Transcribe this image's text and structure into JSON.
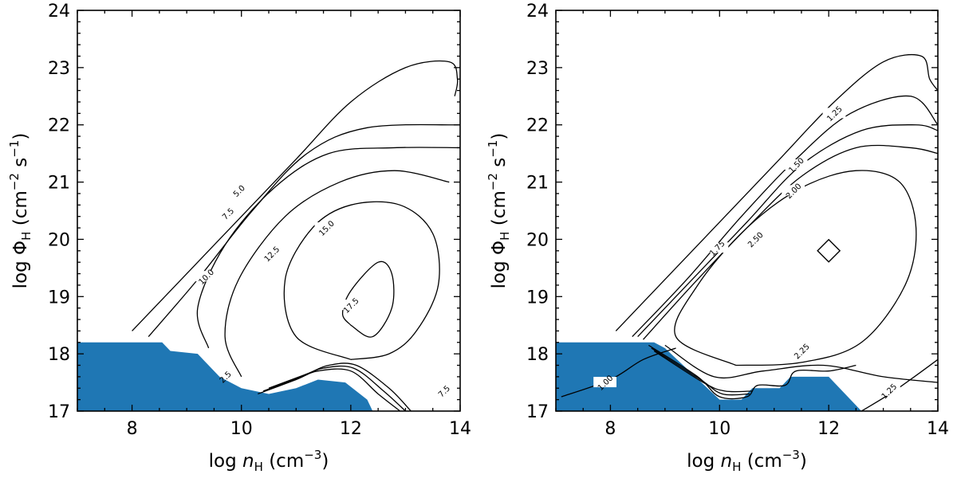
{
  "chart_data": [
    {
      "type": "contour",
      "x": {
        "label_main": "log",
        "label_var": "n",
        "label_sub": "H",
        "label_unit": "(cm",
        "label_exp": "−3",
        "label_close": ")",
        "range": [
          7,
          14
        ],
        "ticks": [
          "8",
          "10",
          "12",
          "14"
        ]
      },
      "y": {
        "label_main": "log",
        "label_var": "Φ",
        "label_sub": "H",
        "label_unit1": "(cm",
        "label_exp1": "−2",
        "label_unit2": "s",
        "label_exp2": "−1",
        "label_close": ")",
        "range": [
          17,
          24
        ],
        "ticks": [
          "17",
          "18",
          "19",
          "20",
          "21",
          "22",
          "23",
          "24"
        ]
      },
      "fill_region": {
        "color": "#1f77b4",
        "points": [
          [
            7,
            18.2
          ],
          [
            8.55,
            18.2
          ],
          [
            8.7,
            18.05
          ],
          [
            9.2,
            18.0
          ],
          [
            9.6,
            17.6
          ],
          [
            10.0,
            17.4
          ],
          [
            10.5,
            17.3
          ],
          [
            11.0,
            17.4
          ],
          [
            11.4,
            17.55
          ],
          [
            11.9,
            17.5
          ],
          [
            12.3,
            17.2
          ],
          [
            12.4,
            17.0
          ],
          [
            7,
            17.0
          ]
        ]
      },
      "contours": [
        {
          "level": "5.0",
          "label_at": [
            9.95,
            20.85
          ],
          "points": [
            [
              8.0,
              18.4
            ],
            [
              9.0,
              19.4
            ],
            [
              10.0,
              20.4
            ],
            [
              11.0,
              21.4
            ],
            [
              12.0,
              22.4
            ],
            [
              13.0,
              23.0
            ],
            [
              13.8,
              23.1
            ],
            [
              13.95,
              22.8
            ],
            [
              13.9,
              22.5
            ]
          ]
        },
        {
          "level": "7.5",
          "label_at": [
            9.75,
            20.45
          ],
          "points": [
            [
              8.3,
              18.3
            ],
            [
              9.2,
              19.3
            ],
            [
              10.2,
              20.5
            ],
            [
              11.2,
              21.5
            ],
            [
              12.3,
              21.95
            ],
            [
              14.0,
              22.0
            ]
          ]
        },
        {
          "level": "10.0",
          "label_at": [
            9.35,
            19.35
          ],
          "points": [
            [
              9.4,
              18.1
            ],
            [
              9.2,
              18.8
            ],
            [
              9.7,
              19.9
            ],
            [
              10.6,
              20.9
            ],
            [
              11.6,
              21.5
            ],
            [
              12.8,
              21.6
            ],
            [
              14.0,
              21.6
            ]
          ]
        },
        {
          "level": "12.5",
          "label_at": [
            10.55,
            19.75
          ],
          "points": [
            [
              10.0,
              17.6
            ],
            [
              9.7,
              18.3
            ],
            [
              9.95,
              19.3
            ],
            [
              10.8,
              20.4
            ],
            [
              11.8,
              21.0
            ],
            [
              12.8,
              21.2
            ],
            [
              13.8,
              21.0
            ]
          ]
        },
        {
          "level": "15.0",
          "label_at": [
            11.55,
            20.2
          ],
          "points": [
            [
              12.0,
              17.9
            ],
            [
              11.0,
              18.3
            ],
            [
              10.8,
              19.3
            ],
            [
              11.3,
              20.2
            ],
            [
              12.0,
              20.6
            ],
            [
              12.9,
              20.6
            ],
            [
              13.5,
              20.1
            ],
            [
              13.6,
              19.2
            ],
            [
              13.2,
              18.4
            ],
            [
              12.7,
              18.0
            ],
            [
              12.0,
              17.9
            ]
          ]
        },
        {
          "level": "17.5",
          "label_at": [
            12.0,
            18.85
          ],
          "points": [
            [
              12.0,
              18.5
            ],
            [
              12.4,
              18.3
            ],
            [
              12.75,
              18.8
            ],
            [
              12.75,
              19.4
            ],
            [
              12.5,
              19.6
            ],
            [
              12.0,
              19.1
            ],
            [
              11.85,
              18.7
            ],
            [
              12.0,
              18.5
            ]
          ]
        },
        {
          "level": "",
          "label_at": null,
          "points": [
            [
              10.3,
              17.3
            ],
            [
              11.0,
              17.55
            ],
            [
              11.4,
              17.7
            ],
            [
              12.0,
              17.7
            ],
            [
              12.5,
              17.3
            ],
            [
              12.9,
              17.0
            ]
          ]
        },
        {
          "level": "",
          "label_at": null,
          "points": [
            [
              10.4,
              17.35
            ],
            [
              11.1,
              17.6
            ],
            [
              11.5,
              17.75
            ],
            [
              12.05,
              17.75
            ],
            [
              12.6,
              17.35
            ],
            [
              13.0,
              17.0
            ]
          ]
        },
        {
          "level": "",
          "label_at": null,
          "points": [
            [
              10.5,
              17.4
            ],
            [
              11.2,
              17.65
            ],
            [
              11.6,
              17.8
            ],
            [
              12.1,
              17.8
            ],
            [
              12.7,
              17.4
            ],
            [
              13.1,
              17.0
            ]
          ]
        }
      ],
      "plain_labels": [
        {
          "text": "7.5",
          "at": [
            13.7,
            17.35
          ]
        },
        {
          "text": "2.5",
          "at": [
            9.7,
            17.6
          ]
        }
      ]
    },
    {
      "type": "contour",
      "x": {
        "label_main": "log",
        "label_var": "n",
        "label_sub": "H",
        "label_unit": "(cm",
        "label_exp": "−3",
        "label_close": ")",
        "range": [
          7,
          14
        ],
        "ticks": [
          "8",
          "10",
          "12",
          "14"
        ]
      },
      "y": {
        "label_main": "log",
        "label_var": "Φ",
        "label_sub": "H",
        "label_unit1": "(cm",
        "label_exp1": "−2",
        "label_unit2": "s",
        "label_exp2": "−1",
        "label_close": ")",
        "range": [
          17,
          24
        ],
        "ticks": [
          "17",
          "18",
          "19",
          "20",
          "21",
          "22",
          "23",
          "24"
        ]
      },
      "fill_region": {
        "color": "#1f77b4",
        "points": [
          [
            7,
            18.2
          ],
          [
            8.8,
            18.2
          ],
          [
            9.0,
            18.1
          ],
          [
            10.0,
            17.2
          ],
          [
            10.4,
            17.2
          ],
          [
            10.6,
            17.4
          ],
          [
            11.1,
            17.4
          ],
          [
            11.3,
            17.6
          ],
          [
            12.0,
            17.6
          ],
          [
            12.2,
            17.4
          ],
          [
            12.6,
            17.0
          ],
          [
            7,
            17.0
          ]
        ]
      },
      "contours": [
        {
          "level": "1.25",
          "label_at": [
            12.1,
            22.2
          ],
          "points": [
            [
              8.1,
              18.4
            ],
            [
              9.1,
              19.4
            ],
            [
              10.1,
              20.4
            ],
            [
              11.1,
              21.4
            ],
            [
              12.1,
              22.4
            ],
            [
              13.0,
              23.1
            ],
            [
              13.7,
              23.2
            ],
            [
              13.85,
              22.8
            ],
            [
              14.0,
              22.6
            ]
          ]
        },
        {
          "level": "1.50",
          "label_at": [
            11.4,
            21.3
          ],
          "points": [
            [
              8.4,
              18.3
            ],
            [
              9.4,
              19.3
            ],
            [
              10.4,
              20.4
            ],
            [
              11.4,
              21.4
            ],
            [
              12.4,
              22.2
            ],
            [
              13.5,
              22.5
            ],
            [
              14.0,
              22.0
            ]
          ]
        },
        {
          "level": "2.00",
          "label_at": [
            11.35,
            20.85
          ],
          "points": [
            [
              8.6,
              18.25
            ],
            [
              9.5,
              19.2
            ],
            [
              10.5,
              20.2
            ],
            [
              11.5,
              21.1
            ],
            [
              12.5,
              21.6
            ],
            [
              13.5,
              21.6
            ],
            [
              14.0,
              21.5
            ]
          ]
        },
        {
          "level": "1.75",
          "label_at": [
            9.95,
            19.85
          ],
          "points": [
            [
              8.5,
              18.3
            ],
            [
              9.5,
              19.3
            ],
            [
              10.5,
              20.3
            ],
            [
              11.5,
              21.3
            ],
            [
              12.6,
              21.9
            ],
            [
              13.6,
              22.0
            ],
            [
              14.0,
              21.9
            ]
          ]
        },
        {
          "level": "2.50",
          "label_at": [
            10.65,
            20.0
          ],
          "points": [
            [
              10.3,
              17.8
            ],
            [
              9.2,
              18.3
            ],
            [
              9.6,
              19.2
            ],
            [
              10.5,
              20.2
            ],
            [
              11.5,
              20.9
            ],
            [
              12.5,
              21.2
            ],
            [
              13.3,
              21.0
            ],
            [
              13.6,
              20.2
            ],
            [
              13.4,
              19.2
            ],
            [
              12.6,
              18.2
            ],
            [
              11.5,
              17.85
            ],
            [
              10.3,
              17.8
            ]
          ]
        },
        {
          "level": "2.25",
          "label_at": [
            11.5,
            18.05
          ],
          "points": [
            [
              9.0,
              18.15
            ],
            [
              9.9,
              17.6
            ],
            [
              10.8,
              17.7
            ],
            [
              11.9,
              17.8
            ],
            [
              13.0,
              17.6
            ],
            [
              14.0,
              17.5
            ]
          ]
        },
        {
          "level": "1.00",
          "label_at": [
            7.9,
            17.5
          ],
          "points": [
            [
              7.1,
              17.25
            ],
            [
              8.0,
              17.55
            ],
            [
              8.6,
              17.9
            ],
            [
              9.2,
              18.1
            ]
          ]
        },
        {
          "level": "1.25",
          "label_at": [
            13.1,
            17.35
          ],
          "points": [
            [
              12.6,
              17.0
            ],
            [
              13.2,
              17.35
            ],
            [
              14.0,
              17.9
            ]
          ]
        },
        {
          "level": "",
          "label_at": null,
          "points": [
            [
              8.7,
              18.15
            ],
            [
              9.6,
              17.6
            ],
            [
              10.0,
              17.25
            ],
            [
              10.5,
              17.25
            ],
            [
              10.7,
              17.45
            ],
            [
              11.2,
              17.45
            ],
            [
              11.4,
              17.7
            ],
            [
              12.0,
              17.7
            ],
            [
              12.5,
              17.8
            ]
          ]
        },
        {
          "level": "",
          "label_at": null,
          "points": [
            [
              8.75,
              18.1
            ],
            [
              9.65,
              17.55
            ],
            [
              10.05,
              17.3
            ],
            [
              10.55,
              17.3
            ]
          ]
        },
        {
          "level": "",
          "label_at": null,
          "points": [
            [
              8.8,
              18.05
            ],
            [
              9.7,
              17.5
            ],
            [
              10.1,
              17.35
            ],
            [
              10.6,
              17.35
            ]
          ]
        }
      ],
      "marker": {
        "shape": "diamond",
        "at": [
          12.0,
          19.8
        ]
      },
      "plain_labels": []
    }
  ]
}
